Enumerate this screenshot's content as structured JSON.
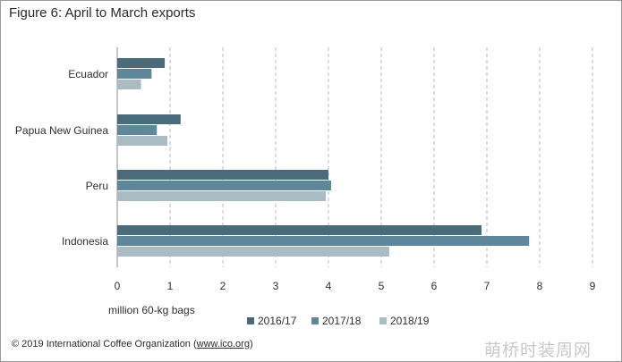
{
  "title": "Figure 6: April to March exports",
  "chart_data": {
    "type": "bar",
    "orientation": "horizontal",
    "categories": [
      "Ecuador",
      "Papua New Guinea",
      "Peru",
      "Indonesia"
    ],
    "series": [
      {
        "name": "2016/17",
        "color": "#4a6b7a",
        "values": [
          0.9,
          1.2,
          4.0,
          6.9
        ]
      },
      {
        "name": "2017/18",
        "color": "#5e8799",
        "values": [
          0.65,
          0.75,
          4.05,
          7.8
        ]
      },
      {
        "name": "2018/19",
        "color": "#a9bbc3",
        "values": [
          0.45,
          0.95,
          3.95,
          5.15
        ]
      }
    ],
    "xlabel": "million 60-kg bags",
    "xlim": [
      0,
      9
    ],
    "xticks": [
      "0",
      "1",
      "2",
      "3",
      "4",
      "5",
      "6",
      "7",
      "8",
      "9"
    ],
    "grid": "vertical dashed",
    "legend": "bottom"
  },
  "footer": {
    "copyright_prefix": "© 2019 International Coffee Organization (",
    "copyright_url": "www.ico.org",
    "copyright_suffix": ")"
  },
  "watermark": "萌桥时装周网"
}
